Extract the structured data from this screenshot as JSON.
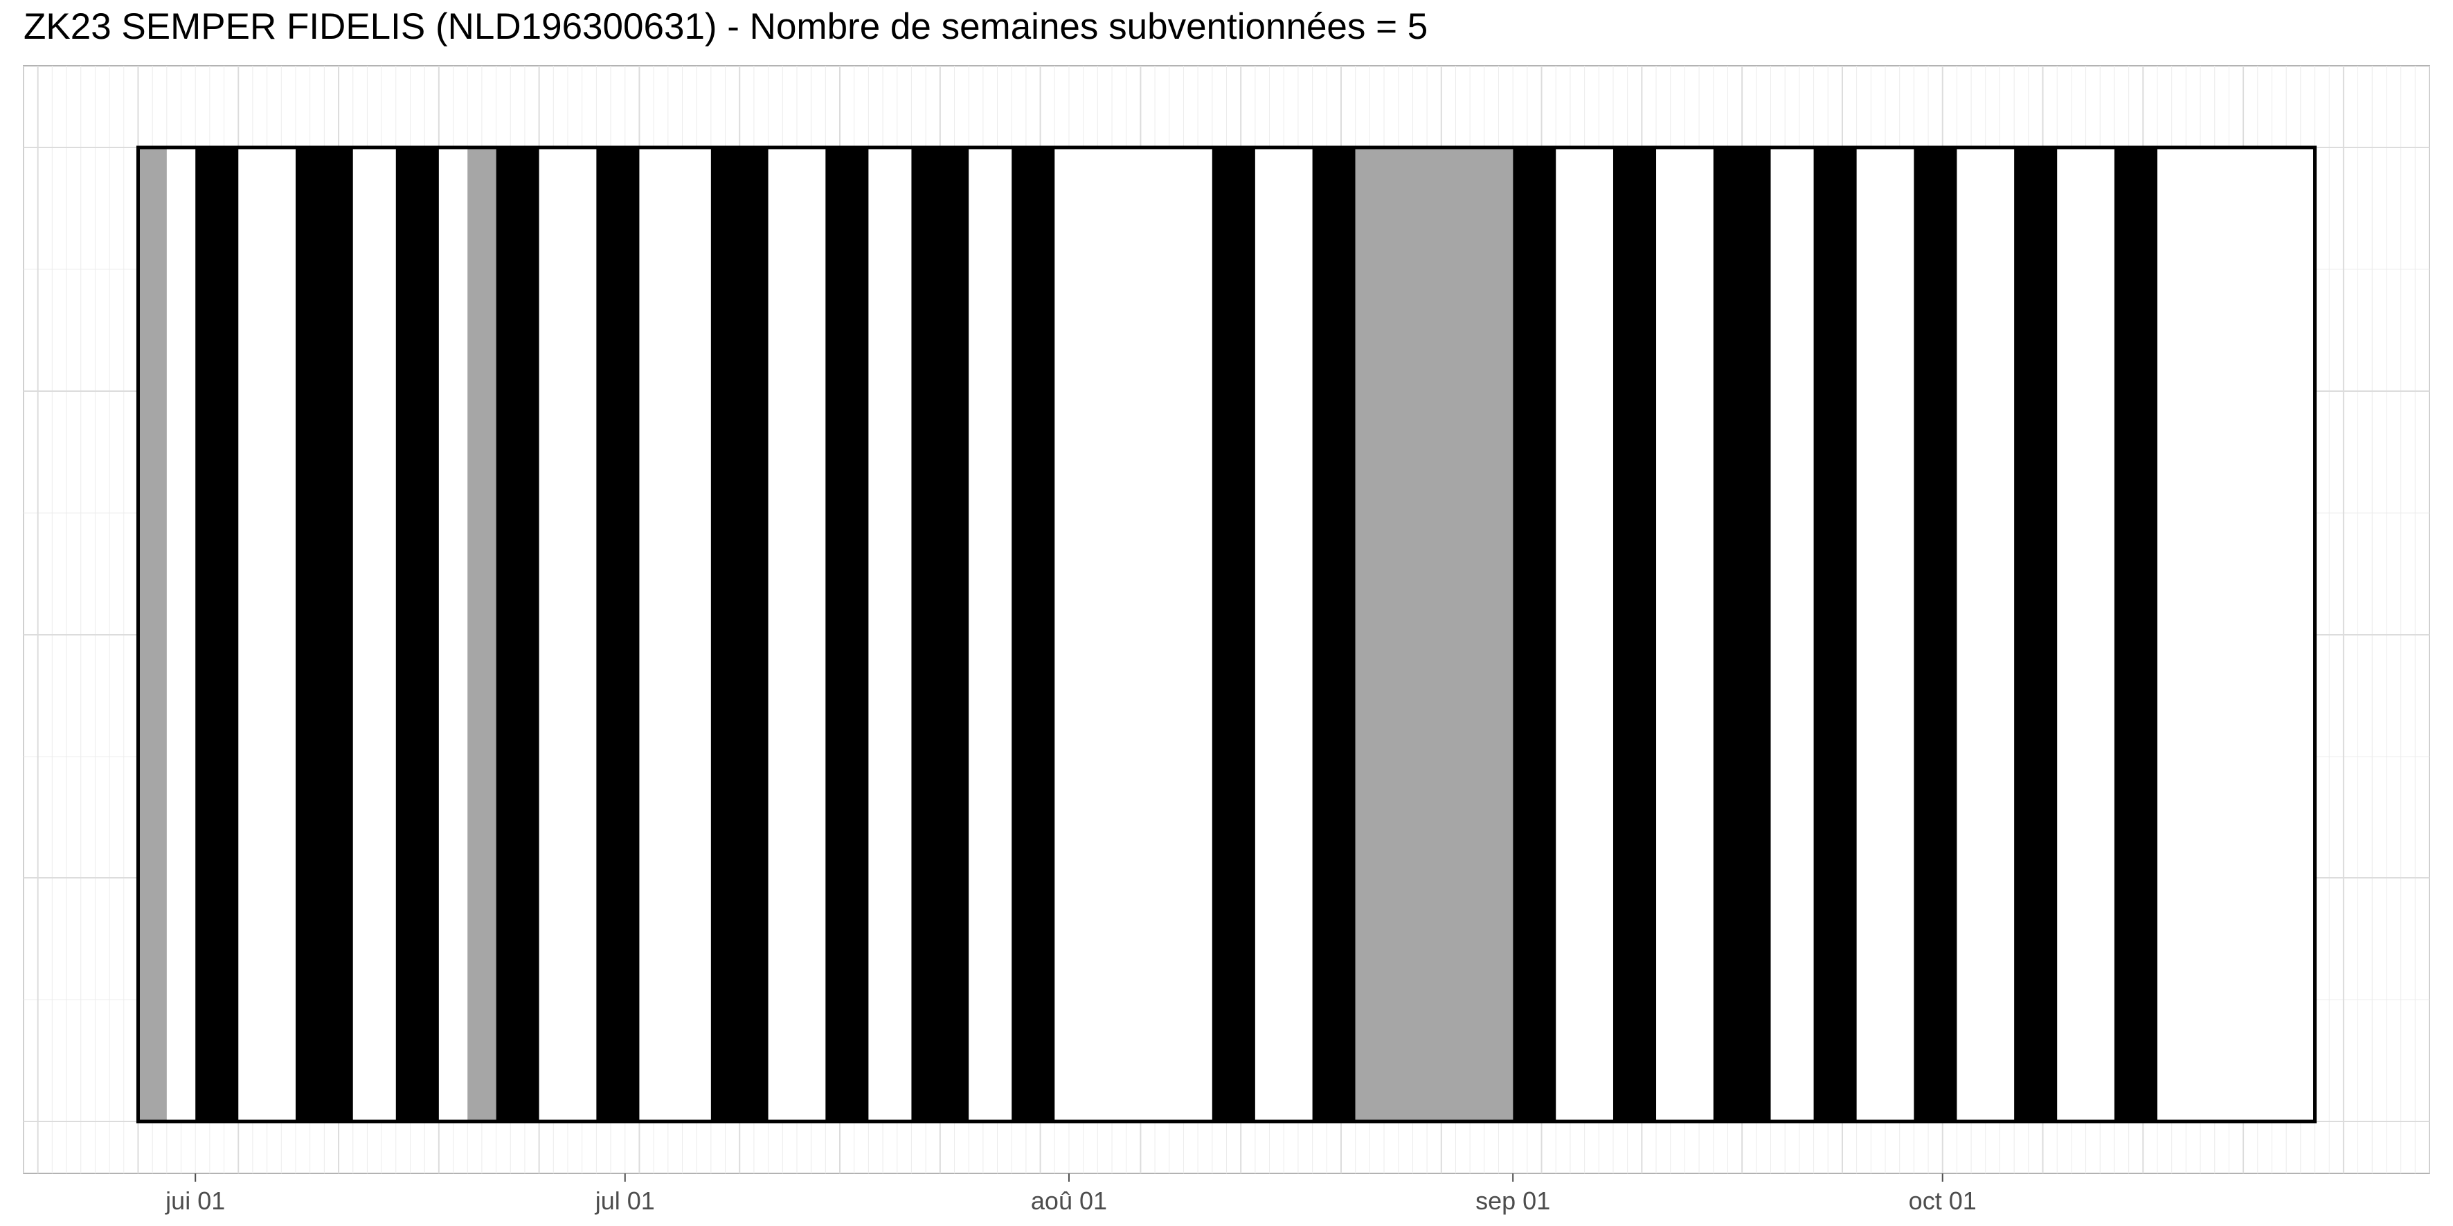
{
  "chart_data": {
    "type": "bar",
    "title": "ZK23 SEMPER FIDELIS (NLD196300631) - Nombre de semaines subventionnées = 5",
    "xlabel": "",
    "ylabel": "",
    "x_axis": {
      "type": "date",
      "range": [
        "2023-05-20",
        "2023-11-04"
      ],
      "major_tick_labels": [
        "jui 01",
        "jul 01",
        "aoû 01",
        "sep 01",
        "oct 01"
      ],
      "major_tick_dates": [
        "2023-06-01",
        "2023-07-01",
        "2023-08-01",
        "2023-09-01",
        "2023-10-01"
      ]
    },
    "grid": true,
    "legend": "none",
    "timeline": {
      "start": "2023-05-28",
      "end": "2023-10-27"
    },
    "series": [
      {
        "color": "#000000",
        "intervals": [
          [
            "2023-06-01",
            "2023-06-04"
          ],
          [
            "2023-06-08",
            "2023-06-12"
          ],
          [
            "2023-06-15",
            "2023-06-18"
          ],
          [
            "2023-06-22",
            "2023-06-25"
          ],
          [
            "2023-06-29",
            "2023-07-02"
          ],
          [
            "2023-07-07",
            "2023-07-11"
          ],
          [
            "2023-07-15",
            "2023-07-18"
          ],
          [
            "2023-07-21",
            "2023-07-25"
          ],
          [
            "2023-07-28",
            "2023-07-31"
          ],
          [
            "2023-08-11",
            "2023-08-14"
          ],
          [
            "2023-08-18",
            "2023-08-21"
          ],
          [
            "2023-09-01",
            "2023-09-04"
          ],
          [
            "2023-09-08",
            "2023-09-11"
          ],
          [
            "2023-09-15",
            "2023-09-19"
          ],
          [
            "2023-09-22",
            "2023-09-25"
          ],
          [
            "2023-09-29",
            "2023-10-02"
          ],
          [
            "2023-10-06",
            "2023-10-09"
          ],
          [
            "2023-10-13",
            "2023-10-16"
          ]
        ]
      },
      {
        "color": "#a6a6a6",
        "intervals": [
          [
            "2023-05-28",
            "2023-05-30"
          ],
          [
            "2023-06-20",
            "2023-06-22"
          ],
          [
            "2023-08-21",
            "2023-09-01"
          ]
        ]
      }
    ]
  }
}
